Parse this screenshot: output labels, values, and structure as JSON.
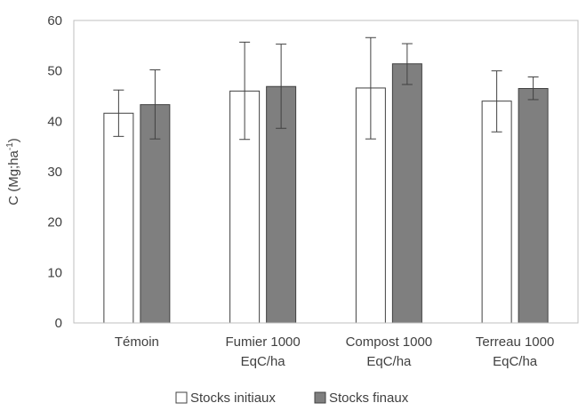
{
  "chart_data": {
    "type": "bar",
    "title": "",
    "xlabel": "",
    "ylabel": "C (Mg;ha",
    "ylabel_superscript": "-1",
    "ylabel_suffix": ")",
    "ylim": [
      0,
      60
    ],
    "yticks": [
      0,
      10,
      20,
      30,
      40,
      50,
      60
    ],
    "grid": false,
    "legend_position": "bottom",
    "categories": [
      [
        "Témoin"
      ],
      [
        "Fumier  1000",
        "EqC/ha"
      ],
      [
        "Compost 1000",
        "EqC/ha"
      ],
      [
        "Terreau 1000",
        "EqC/ha"
      ]
    ],
    "series": [
      {
        "name": "Stocks initiaux",
        "color": "#ffffff",
        "values": [
          41.6,
          46.0,
          46.6,
          44.0
        ],
        "error_low": [
          37.0,
          36.4,
          36.5,
          37.9
        ],
        "error_high": [
          46.2,
          55.7,
          56.6,
          50.0
        ]
      },
      {
        "name": "Stocks finaux",
        "color": "#7f7f7f",
        "values": [
          43.3,
          46.9,
          51.4,
          46.5
        ],
        "error_low": [
          36.5,
          38.6,
          47.3,
          44.3
        ],
        "error_high": [
          50.2,
          55.3,
          55.4,
          48.8
        ]
      }
    ]
  }
}
